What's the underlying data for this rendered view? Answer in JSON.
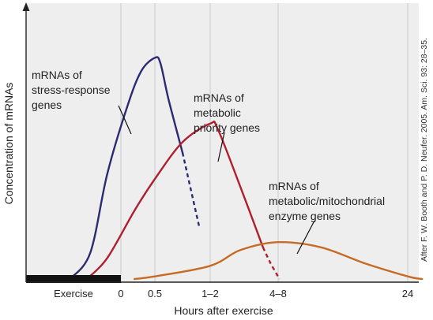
{
  "chart_data": {
    "type": "line",
    "xlabel": "Hours after exercise",
    "ylabel": "Concentration of mRNAs",
    "exercise_label": "Exercise",
    "tick_labels": [
      "0",
      "0.5",
      "1–2",
      "4–8",
      "24"
    ],
    "tick_hours": [
      0,
      0.5,
      1.5,
      6,
      24
    ],
    "grid": "vertical",
    "y_scale": "relative, no numeric ticks",
    "series": [
      {
        "name": "mRNAs of stress-response genes",
        "label_lines": [
          "mRNAs of",
          "stress-response",
          "genes"
        ],
        "color": "#2b2b72",
        "solid": [
          [
            -0.75,
            0.0
          ],
          [
            -0.45,
            0.1
          ],
          [
            -0.2,
            0.4
          ],
          [
            0.1,
            0.66
          ],
          [
            0.3,
            0.79
          ],
          [
            0.5,
            0.84
          ],
          [
            0.6,
            0.82
          ],
          [
            0.75,
            0.68
          ],
          [
            1.0,
            0.48
          ]
        ],
        "dashed": [
          [
            1.0,
            0.48
          ],
          [
            1.15,
            0.34
          ],
          [
            1.3,
            0.2
          ]
        ]
      },
      {
        "name": "mRNAs of metabolic priority genes",
        "label_lines": [
          "mRNAs of",
          "metabolic",
          "priority genes"
        ],
        "color": "#b01f2b",
        "solid": [
          [
            -0.5,
            0.0
          ],
          [
            -0.2,
            0.08
          ],
          [
            0.2,
            0.26
          ],
          [
            0.5,
            0.38
          ],
          [
            1.0,
            0.52
          ],
          [
            1.5,
            0.59
          ],
          [
            2.0,
            0.57
          ],
          [
            3.5,
            0.35
          ],
          [
            5.0,
            0.12
          ]
        ],
        "dashed": [
          [
            5.0,
            0.12
          ],
          [
            5.5,
            0.06
          ],
          [
            6.2,
            0.0
          ]
        ]
      },
      {
        "name": "mRNAs of metabolic/mitochondrial enzyme genes",
        "label_lines": [
          "mRNAs of",
          "metabolic/mitochondrial",
          "enzyme genes"
        ],
        "color": "#c76a24",
        "solid": [
          [
            0.2,
            0.0
          ],
          [
            0.5,
            0.01
          ],
          [
            1.5,
            0.05
          ],
          [
            3.5,
            0.11
          ],
          [
            6.0,
            0.14
          ],
          [
            12,
            0.12
          ],
          [
            18,
            0.06
          ],
          [
            24,
            0.01
          ],
          [
            26,
            0.0
          ]
        ]
      }
    ],
    "credit": "After F. W. Booth and P. D. Neufer. 2005. Am. Sci. 93: 28–35."
  },
  "colors": {
    "plot_background": "#eeeeef",
    "gridline": "#c9c9cc",
    "exercise_bar": "#111111"
  }
}
